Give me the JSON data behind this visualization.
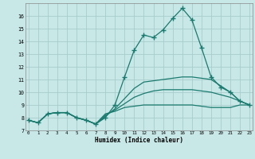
{
  "title": "",
  "xlabel": "Humidex (Indice chaleur)",
  "bg_color": "#c8e8e8",
  "grid_color": "#a8cccc",
  "line_color": "#1a7a6e",
  "xlim": [
    0,
    23
  ],
  "ylim": [
    7,
    17
  ],
  "yticks": [
    7,
    8,
    9,
    10,
    11,
    12,
    13,
    14,
    15,
    16
  ],
  "xticks": [
    0,
    1,
    2,
    3,
    4,
    5,
    6,
    7,
    8,
    9,
    10,
    11,
    12,
    13,
    14,
    15,
    16,
    17,
    18,
    19,
    20,
    21,
    22,
    23
  ],
  "lines": [
    {
      "y": [
        7.8,
        7.6,
        8.3,
        8.4,
        8.4,
        8.0,
        7.8,
        7.5,
        8.0,
        9.0,
        11.2,
        13.3,
        14.5,
        14.3,
        14.9,
        15.8,
        16.6,
        15.7,
        13.5,
        11.2,
        10.4,
        10.0,
        9.3,
        9.0
      ],
      "marker": true
    },
    {
      "y": [
        7.8,
        7.6,
        8.3,
        8.4,
        8.4,
        8.0,
        7.8,
        7.5,
        8.1,
        8.7,
        9.5,
        10.3,
        10.8,
        10.9,
        11.0,
        11.1,
        11.2,
        11.2,
        11.1,
        11.0,
        10.5,
        10.0,
        9.3,
        9.0
      ],
      "marker": false
    },
    {
      "y": [
        7.8,
        7.6,
        8.3,
        8.4,
        8.4,
        8.0,
        7.8,
        7.5,
        8.2,
        8.6,
        9.1,
        9.6,
        9.9,
        10.1,
        10.2,
        10.2,
        10.2,
        10.2,
        10.1,
        10.0,
        9.8,
        9.6,
        9.3,
        9.0
      ],
      "marker": false
    },
    {
      "y": [
        7.8,
        7.6,
        8.3,
        8.4,
        8.4,
        8.0,
        7.8,
        7.5,
        8.3,
        8.5,
        8.8,
        8.9,
        9.0,
        9.0,
        9.0,
        9.0,
        9.0,
        9.0,
        8.9,
        8.8,
        8.8,
        8.8,
        9.0,
        9.0
      ],
      "marker": false
    }
  ]
}
